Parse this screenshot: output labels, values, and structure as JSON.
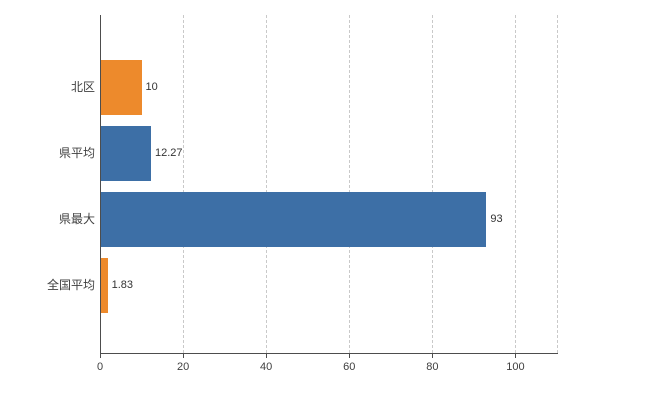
{
  "chart": {
    "background": "#ffffff",
    "axis_color": "#4d4d4d",
    "grid_color": "#c9c9c9",
    "label_color": "#404040"
  },
  "chart_data": {
    "type": "bar",
    "orientation": "horizontal",
    "title": "",
    "categories": [
      "北区",
      "県平均",
      "県最大",
      "全国平均"
    ],
    "values": [
      10,
      12.27,
      93,
      1.83
    ],
    "value_labels": [
      "10",
      "12.27",
      "93",
      "1.83"
    ],
    "bar_colors": [
      "#ed8a2c",
      "#3d6fa6",
      "#3d6fa6",
      "#ed8a2c"
    ],
    "xlim": [
      0,
      110
    ],
    "x_ticks": [
      0,
      20,
      40,
      60,
      80,
      100
    ],
    "x_tick_labels": [
      "0",
      "20",
      "40",
      "60",
      "80",
      "100"
    ],
    "grid": "vertical-dashed",
    "legend": "none"
  }
}
